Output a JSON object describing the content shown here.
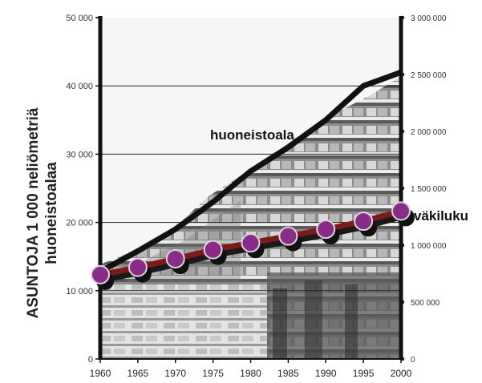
{
  "chart_data": {
    "type": "line",
    "x": [
      1960,
      1965,
      1970,
      1975,
      1980,
      1985,
      1990,
      1995,
      2000
    ],
    "xticks": [
      "1960",
      "1965",
      "1970",
      "1975",
      "1980",
      "1985",
      "1990",
      "1995",
      "2000"
    ],
    "ylabel": [
      "ASUNTOJA 1 000 neliömetriä",
      "huoneistoalaa"
    ],
    "ylim_left": [
      0,
      50000
    ],
    "ylim_right": [
      0,
      3000000
    ],
    "yticks_left": [
      "0",
      "10 000",
      "20 000",
      "30 000",
      "40 000",
      "50 000"
    ],
    "yticks_right": [
      "0",
      "500 000",
      "1 000 000",
      "1 500 000",
      "2 000 000",
      "2 500 000",
      "3 000 000"
    ],
    "series": [
      {
        "name": "huoneistoala",
        "axis": "left",
        "color": "#111111",
        "values": [
          12800,
          15800,
          19000,
          23000,
          27500,
          31000,
          35000,
          40000,
          42000
        ]
      },
      {
        "name": "väkiluku",
        "axis": "right",
        "color": "#7a1a1a",
        "marker_color": "#8a2a8a",
        "values": [
          740000,
          805000,
          880000,
          960000,
          1020000,
          1080000,
          1140000,
          1210000,
          1300000
        ]
      }
    ],
    "grid": true,
    "background": "photograph of apartment buildings"
  }
}
